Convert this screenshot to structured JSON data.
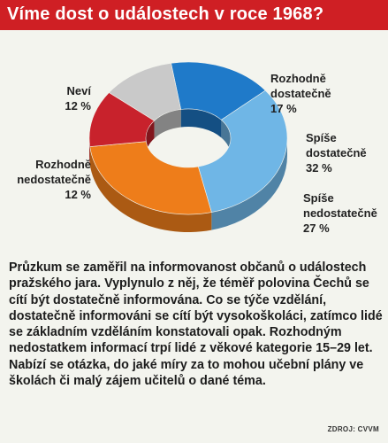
{
  "header": {
    "title": "Víme dost o událostech v roce 1968?"
  },
  "chart_data": {
    "type": "pie",
    "title": "Víme dost o událostech v roce 1968?",
    "slices": [
      {
        "label_line1": "Rozhodně",
        "label_line2": "dostatečně",
        "value": 17,
        "display": "17 %",
        "color": "#1f7ac9"
      },
      {
        "label_line1": "Spíše",
        "label_line2": "dostatečně",
        "value": 32,
        "display": "32 %",
        "color": "#6fb6e6"
      },
      {
        "label_line1": "Spíše",
        "label_line2": "nedostatečně",
        "value": 27,
        "display": "27 %",
        "color": "#ee7d1a"
      },
      {
        "label_line1": "Rozhodně",
        "label_line2": "nedostatečně",
        "value": 12,
        "display": "12 %",
        "color": "#c8222c"
      },
      {
        "label_line1": "Neví",
        "label_line2": "",
        "value": 12,
        "display": "12 %",
        "color": "#c9c9c9"
      }
    ]
  },
  "article": {
    "text": "Průzkum se zaměřil na informovanost občanů o událostech pražského jara. Vyplynulo z něj, že téměř polovina Čechů se cítí být dostatečně informována. Co se týče vzdělání, dostatečně informováni se cítí být vysokoškoláci, zatímco lidé se základním vzděláním konstatovali opak. Rozhodným nedostatkem informací trpí lidé z věkové kategorie 15–29 let. Nabízí se otázka, do jaké míry za to mohou učební plány ve školách či malý zájem učitelů o dané téma."
  },
  "source": {
    "text": "ZDROJ: CVVM"
  }
}
